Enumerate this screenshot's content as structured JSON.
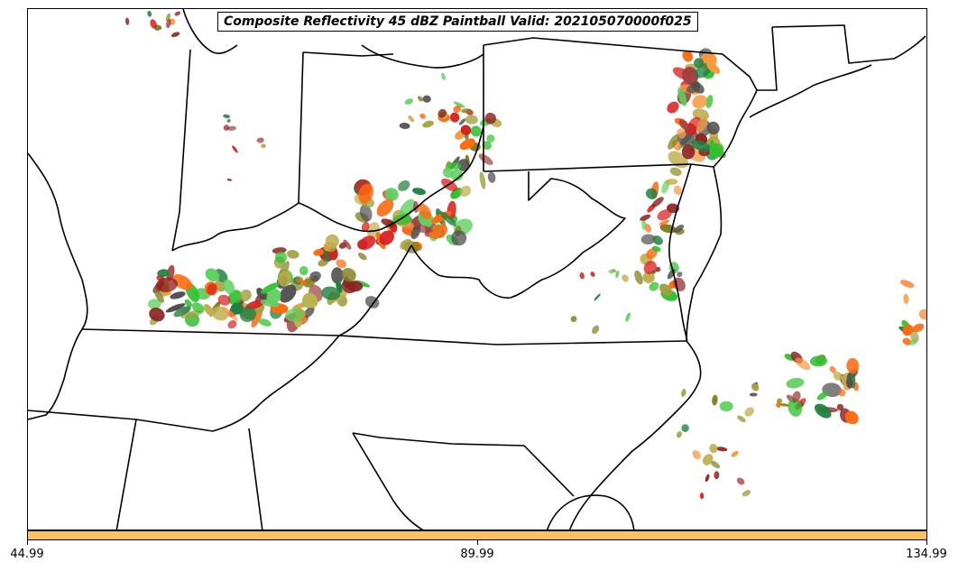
{
  "title": "Composite Reflectivity 45 dBZ Paintball Valid: 202105070000f025",
  "colorbar": {
    "color": "#ffc060",
    "min": 44.99,
    "max": 134.99,
    "ticks": [
      "44.99",
      "89.99",
      "134.99"
    ]
  },
  "member_colors": [
    "#d92020",
    "#ff6a10",
    "#f59a40",
    "#8b2020",
    "#a04040",
    "#808020",
    "#a0a040",
    "#30c030",
    "#60d060",
    "#208040",
    "#505050",
    "#c0b050"
  ],
  "map": {
    "boundary_color": "#000000",
    "background": "#ffffff"
  }
}
